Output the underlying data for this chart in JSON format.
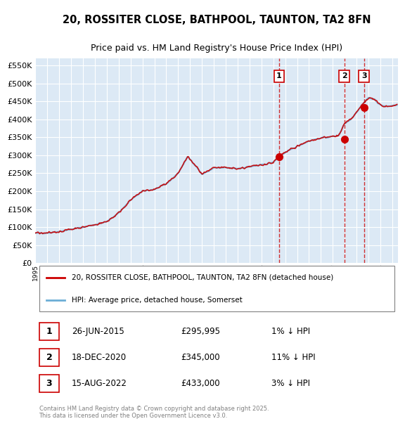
{
  "title1": "20, ROSSITER CLOSE, BATHPOOL, TAUNTON, TA2 8FN",
  "title2": "Price paid vs. HM Land Registry's House Price Index (HPI)",
  "legend_line1": "20, ROSSITER CLOSE, BATHPOOL, TAUNTON, TA2 8FN (detached house)",
  "legend_line2": "HPI: Average price, detached house, Somerset",
  "table": [
    {
      "num": "1",
      "date": "26-JUN-2015",
      "price": "£295,995",
      "hpi": "1% ↓ HPI"
    },
    {
      "num": "2",
      "date": "18-DEC-2020",
      "price": "£345,000",
      "hpi": "11% ↓ HPI"
    },
    {
      "num": "3",
      "date": "15-AUG-2022",
      "price": "£433,000",
      "hpi": "3% ↓ HPI"
    }
  ],
  "footnote": "Contains HM Land Registry data © Crown copyright and database right 2025.\nThis data is licensed under the Open Government Licence v3.0.",
  "sale_dates": [
    2015.49,
    2020.96,
    2022.62
  ],
  "sale_prices": [
    295995,
    345000,
    433000
  ],
  "hpi_color": "#6baed6",
  "price_color": "#cc0000",
  "bg_color": "#dce9f5",
  "plot_bg": "#dce9f5",
  "grid_color": "#ffffff",
  "vline_color": "#cc0000",
  "ylim": [
    0,
    570000
  ],
  "xlim": [
    1995,
    2025.5
  ]
}
